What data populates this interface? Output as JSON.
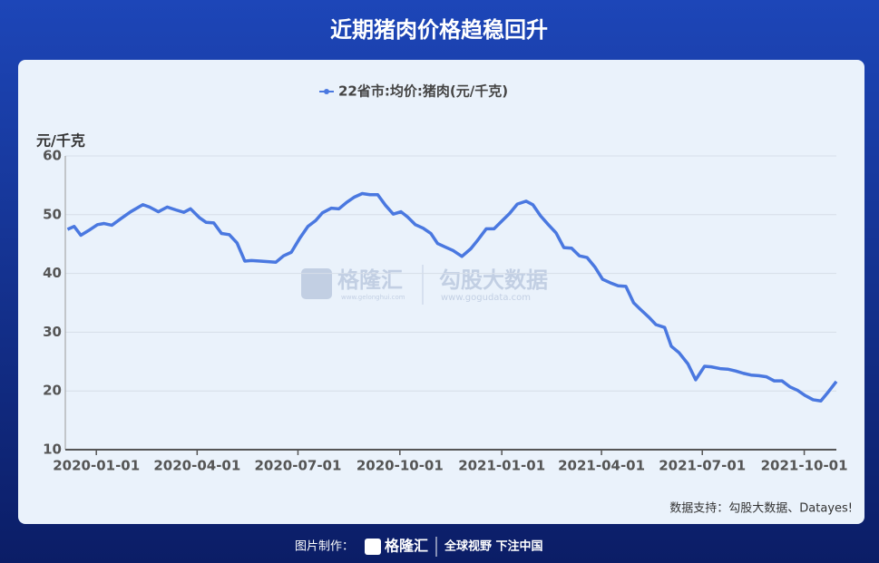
{
  "chart_data": {
    "type": "line",
    "title": "近期猪肉价格趋稳回升",
    "y_label": "元/千克",
    "source": "数据支持：勾股大数据、Datayes!",
    "watermark": {
      "brand": "格隆汇",
      "brand_url": "www.gelonghui.com",
      "partner": "勾股大数据",
      "partner_url": "www.gogudata.com"
    },
    "x": [
      "2019-12-06",
      "2019-12-12",
      "2019-12-18",
      "2019-12-25",
      "2020-01-02",
      "2020-01-08",
      "2020-01-15",
      "2020-01-23",
      "2020-02-01",
      "2020-02-12",
      "2020-02-18",
      "2020-02-26",
      "2020-03-05",
      "2020-03-13",
      "2020-03-20",
      "2020-03-26",
      "2020-04-03",
      "2020-04-09",
      "2020-04-16",
      "2020-04-23",
      "2020-04-30",
      "2020-05-07",
      "2020-05-14",
      "2020-05-20",
      "2020-05-28",
      "2020-06-04",
      "2020-06-11",
      "2020-06-18",
      "2020-06-25",
      "2020-07-03",
      "2020-07-10",
      "2020-07-17",
      "2020-07-23",
      "2020-07-31",
      "2020-08-07",
      "2020-08-14",
      "2020-08-21",
      "2020-08-28",
      "2020-09-04",
      "2020-09-11",
      "2020-09-18",
      "2020-09-25",
      "2020-10-02",
      "2020-10-08",
      "2020-10-15",
      "2020-10-22",
      "2020-10-29",
      "2020-11-04",
      "2020-11-12",
      "2020-11-18",
      "2020-11-26",
      "2020-12-04",
      "2020-12-10",
      "2020-12-18",
      "2020-12-25",
      "2021-01-01",
      "2021-01-08",
      "2021-01-15",
      "2021-01-23",
      "2021-01-29",
      "2021-02-05",
      "2021-02-12",
      "2021-02-19",
      "2021-02-26",
      "2021-03-05",
      "2021-03-12",
      "2021-03-19",
      "2021-03-26",
      "2021-04-02",
      "2021-04-09",
      "2021-04-16",
      "2021-04-23",
      "2021-04-30",
      "2021-05-06",
      "2021-05-14",
      "2021-05-20",
      "2021-05-28",
      "2021-06-03",
      "2021-06-10",
      "2021-06-18",
      "2021-06-25",
      "2021-07-03",
      "2021-07-09",
      "2021-07-17",
      "2021-07-24",
      "2021-07-31",
      "2021-08-07",
      "2021-08-14",
      "2021-08-21",
      "2021-08-28",
      "2021-09-04",
      "2021-09-11",
      "2021-09-18",
      "2021-09-25",
      "2021-10-02",
      "2021-10-09",
      "2021-10-16",
      "2021-10-23",
      "2021-10-30"
    ],
    "series": [
      {
        "name": "22省市:均价:猪肉(元/千克)",
        "color": "#4a78e0",
        "values": [
          47.5,
          48,
          46.5,
          47.3,
          48.3,
          48.5,
          48.2,
          49.3,
          50.5,
          51.7,
          51.3,
          50.5,
          51.3,
          50.8,
          50.4,
          51,
          49.5,
          48.7,
          48.6,
          46.8,
          46.6,
          45.2,
          42.1,
          42.2,
          42.1,
          42,
          41.9,
          43,
          43.6,
          46.1,
          48,
          49,
          50.3,
          51.1,
          51,
          52.1,
          53,
          53.6,
          53.4,
          53.4,
          51.6,
          50.1,
          50.5,
          49.6,
          48.3,
          47.7,
          46.8,
          45.1,
          44.4,
          43.9,
          42.9,
          44.2,
          45.6,
          47.6,
          47.6,
          48.9,
          50.2,
          51.8,
          52.3,
          51.7,
          49.8,
          48.3,
          46.9,
          44.4,
          44.3,
          43,
          42.7,
          41.1,
          39,
          38.4,
          37.9,
          37.8,
          35,
          33.9,
          32.5,
          31.3,
          30.8,
          27.6,
          26.5,
          24.6,
          21.9,
          24.2,
          24.1,
          23.8,
          23.7,
          23.4,
          23,
          22.7,
          22.6,
          22.4,
          21.7,
          21.7,
          20.7,
          20.1,
          19.2,
          18.5,
          18.3,
          19.9,
          21.6
        ]
      }
    ],
    "xlim": [
      "2019-12-04",
      "2021-10-30"
    ],
    "xticks": [
      "2020-01-01",
      "2020-04-01",
      "2020-07-01",
      "2020-10-01",
      "2021-01-01",
      "2021-04-01",
      "2021-07-01",
      "2021-10-01"
    ],
    "ylim": [
      10,
      60
    ],
    "yticks": [
      10,
      20,
      30,
      40,
      50,
      60
    ],
    "grid": true,
    "legend": "top"
  },
  "footer": {
    "maker_label": "图片制作：",
    "brand": "格隆汇",
    "slogan": "全球视野 下注中国"
  }
}
